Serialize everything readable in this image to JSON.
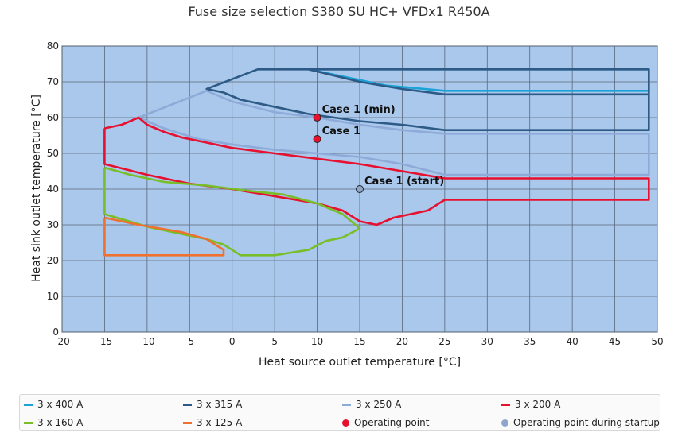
{
  "chart_data": {
    "type": "line",
    "title": "Fuse size selection S380 SU HC+ VFDx1 R450A",
    "xlabel": "Heat source outlet temperature [°C]",
    "ylabel": "Heat sink outlet temperature [°C]",
    "xlim": [
      -20,
      50
    ],
    "ylim": [
      0,
      80
    ],
    "x_ticks": [
      "-20",
      "-15",
      "-10",
      "-5",
      "0",
      "5",
      "10",
      "15",
      "20",
      "25",
      "30",
      "35",
      "40",
      "45",
      "50"
    ],
    "y_ticks": [
      "0",
      "10",
      "20",
      "30",
      "40",
      "50",
      "60",
      "70",
      "80"
    ],
    "grid": true,
    "legend_position": "bottom",
    "series": [
      {
        "name": "3 x 400 A",
        "color": "#1aa3d6",
        "points": [
          [
            9,
            73.5
          ],
          [
            49,
            73.5
          ],
          [
            49,
            67.5
          ],
          [
            25,
            67.5
          ],
          [
            18,
            69
          ],
          [
            14,
            71
          ],
          [
            9,
            73.5
          ]
        ]
      },
      {
        "name": "3 x 315 A",
        "color": "#2d5a86",
        "points": [
          [
            3,
            73.5
          ],
          [
            9,
            73.5
          ],
          [
            49,
            73.5
          ],
          [
            49,
            66.5
          ],
          [
            25,
            66.5
          ],
          [
            20,
            68
          ],
          [
            15,
            70
          ],
          [
            9,
            73.5
          ],
          [
            3,
            73.5
          ],
          [
            -3,
            68
          ],
          [
            -1,
            67
          ],
          [
            1,
            65
          ],
          [
            4,
            63.5
          ],
          [
            9,
            61
          ],
          [
            15,
            59
          ],
          [
            20,
            58
          ],
          [
            25,
            56.5
          ],
          [
            49,
            56.5
          ],
          [
            49,
            66.5
          ]
        ]
      },
      {
        "name": "3 x 250 A",
        "color": "#8eaad8",
        "points": [
          [
            -3,
            67.5
          ],
          [
            -11,
            60
          ],
          [
            -8,
            57
          ],
          [
            -4,
            54
          ],
          [
            0,
            52.5
          ],
          [
            5,
            51
          ],
          [
            10,
            50
          ],
          [
            15,
            49
          ],
          [
            20,
            47
          ],
          [
            25,
            44
          ],
          [
            49,
            44
          ],
          [
            49,
            55.5
          ],
          [
            25,
            55.5
          ],
          [
            20,
            56.5
          ],
          [
            15,
            58
          ],
          [
            10,
            60
          ],
          [
            5,
            61.5
          ],
          [
            0,
            64.5
          ],
          [
            -3,
            67.5
          ]
        ]
      },
      {
        "name": "3 x 200 A",
        "color": "#e8102f",
        "points": [
          [
            -15,
            57
          ],
          [
            -13,
            58
          ],
          [
            -11,
            60
          ],
          [
            -10,
            58
          ],
          [
            -8,
            56
          ],
          [
            -6,
            54.5
          ],
          [
            -3,
            53
          ],
          [
            0,
            51.5
          ],
          [
            5,
            50
          ],
          [
            10,
            48.5
          ],
          [
            15,
            47
          ],
          [
            20,
            45
          ],
          [
            25,
            43
          ],
          [
            49,
            43
          ],
          [
            49,
            37
          ],
          [
            25,
            37
          ],
          [
            23,
            34
          ],
          [
            21,
            33
          ],
          [
            19,
            32
          ],
          [
            17,
            30
          ],
          [
            15,
            31
          ],
          [
            13,
            34
          ],
          [
            10,
            36
          ],
          [
            5,
            38
          ],
          [
            0,
            40
          ],
          [
            -5,
            41.5
          ],
          [
            -10,
            44
          ],
          [
            -15,
            47
          ],
          [
            -15,
            57
          ]
        ]
      },
      {
        "name": "3 x 160 A",
        "color": "#78be28",
        "points": [
          [
            -15,
            46
          ],
          [
            -12,
            44
          ],
          [
            -8,
            42
          ],
          [
            -3,
            41
          ],
          [
            2,
            39.5
          ],
          [
            6,
            38.5
          ],
          [
            10,
            36
          ],
          [
            13,
            33
          ],
          [
            15,
            29
          ],
          [
            13,
            26.5
          ],
          [
            11,
            25.5
          ],
          [
            9,
            23
          ],
          [
            5,
            21.5
          ],
          [
            1,
            21.5
          ],
          [
            -1,
            24.5
          ],
          [
            -3,
            26
          ],
          [
            -6,
            27.5
          ],
          [
            -10,
            29.5
          ],
          [
            -15,
            33
          ],
          [
            -15,
            46
          ]
        ]
      },
      {
        "name": "3 x 125 A",
        "color": "#f07030",
        "points": [
          [
            -15,
            32
          ],
          [
            -11,
            30
          ],
          [
            -6,
            28
          ],
          [
            -3,
            26
          ],
          [
            -1,
            23
          ],
          [
            -1,
            21.5
          ],
          [
            -15,
            21.5
          ],
          [
            -15,
            32
          ]
        ]
      }
    ],
    "markers": [
      {
        "label": "Case 1 (min)",
        "x": 10,
        "y": 60,
        "kind": "operating"
      },
      {
        "label": "Case 1",
        "x": 10,
        "y": 54,
        "kind": "operating"
      },
      {
        "label": "Case 1 (start)",
        "x": 15,
        "y": 40,
        "kind": "startup"
      }
    ],
    "marker_styles": {
      "operating": {
        "name": "Operating point",
        "color": "#e8102f"
      },
      "startup": {
        "name": "Operating point during startup",
        "color": "#8ea6cc"
      }
    },
    "plot_background": "#a9c8ec"
  }
}
